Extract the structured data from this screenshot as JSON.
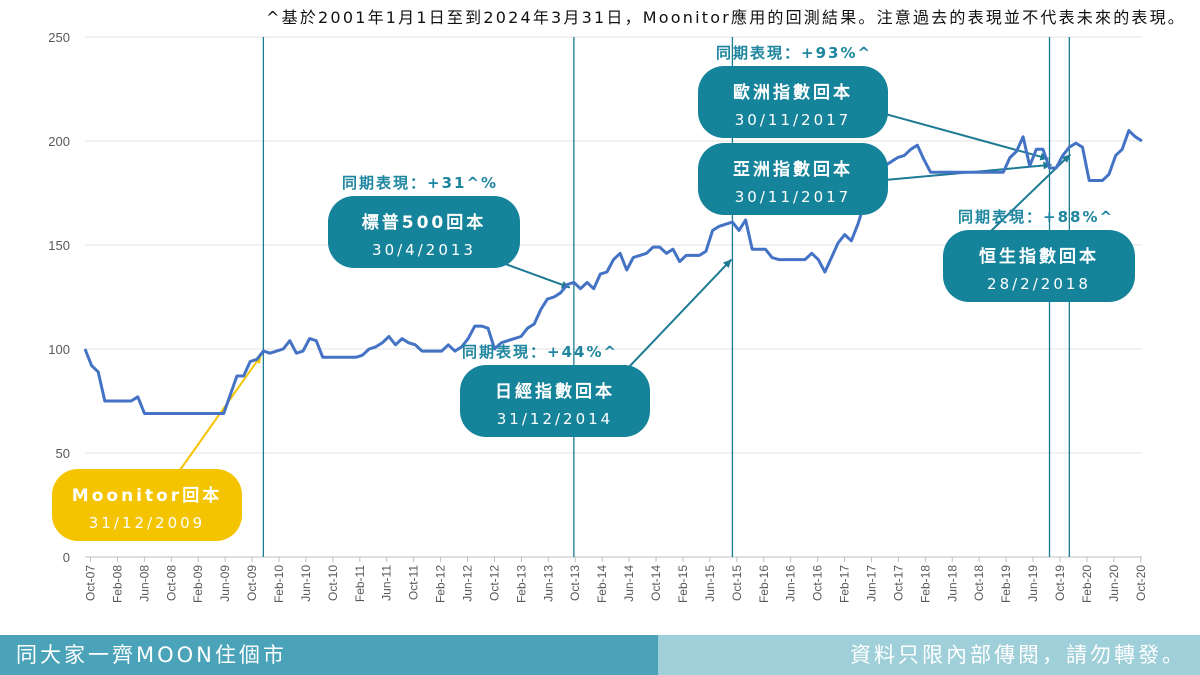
{
  "header": {
    "disclaimer": "^基於2001年1月1日至到2024年3月31日，Moonitor應用的回測結果。注意過去的表現並不代表未來的表現。"
  },
  "footer": {
    "left": "同大家一齊MOON住個市",
    "right": "資料只限內部傳閱，請勿轉發。"
  },
  "colors": {
    "line": "#4472c4",
    "event_line": "#1c7a92",
    "bubble_teal": "#15839a",
    "bubble_yellow": "#f5c400",
    "perf_text": "#1f86a0",
    "footer_left": "#4aa3b9",
    "footer_right": "#9fcfd9"
  },
  "chart_data": {
    "type": "line",
    "ylim": [
      0,
      250
    ],
    "yticks": [
      0,
      50,
      100,
      150,
      200,
      250
    ],
    "grid": true,
    "x_tick_labels": [
      "Oct-07",
      "Feb-08",
      "Jun-08",
      "Oct-08",
      "Feb-09",
      "Jun-09",
      "Oct-09",
      "Feb-10",
      "Jun-10",
      "Oct-10",
      "Feb-11",
      "Jun-11",
      "Oct-11",
      "Feb-12",
      "Jun-12",
      "Oct-12",
      "Feb-13",
      "Jun-13",
      "Oct-13",
      "Feb-14",
      "Jun-14",
      "Oct-14",
      "Feb-15",
      "Jun-15",
      "Oct-15",
      "Feb-16",
      "Jun-16",
      "Oct-16",
      "Feb-17",
      "Jun-17",
      "Oct-17",
      "Feb-18",
      "Jun-18",
      "Oct-18",
      "Feb-19",
      "Jun-19",
      "Oct-19",
      "Feb-20",
      "Jun-20",
      "Oct-20"
    ],
    "series": [
      {
        "values": [
          100,
          92,
          89,
          75,
          75,
          75,
          75,
          75,
          77,
          69,
          69,
          69,
          69,
          69,
          69,
          69,
          69,
          69,
          69,
          69,
          69,
          69,
          78,
          87,
          87,
          94,
          95,
          99,
          98,
          99,
          100,
          104,
          98,
          99,
          105,
          104,
          96,
          96,
          96,
          96,
          96,
          96,
          97,
          100,
          101,
          103,
          106,
          102,
          105,
          103,
          102,
          99,
          99,
          99,
          99,
          102,
          99,
          101,
          105,
          111,
          111,
          110,
          100,
          103,
          104,
          105,
          106,
          110,
          112,
          119,
          124,
          125,
          127,
          131,
          132,
          129,
          132,
          129,
          136,
          137,
          143,
          146,
          138,
          144,
          145,
          146,
          149,
          149,
          146,
          148,
          142,
          145,
          145,
          145,
          147,
          157,
          159,
          160,
          161,
          157,
          162,
          148,
          148,
          148,
          144,
          143,
          143,
          143,
          143,
          143,
          146,
          143,
          137,
          144,
          151,
          155,
          152,
          160,
          170,
          180,
          185,
          188,
          190,
          192,
          193,
          196,
          198,
          191,
          185,
          185,
          185,
          185,
          185,
          185,
          185,
          185,
          185,
          185,
          185,
          185,
          192,
          195,
          202,
          188,
          196,
          196,
          187,
          187,
          193,
          197,
          199,
          197,
          181,
          181,
          181,
          184,
          193,
          196,
          205,
          202,
          200
        ]
      }
    ],
    "events": [
      {
        "label": "Moonitor回本",
        "date": "31/12/2009"
      },
      {
        "label": "標普500回本",
        "date": "30/4/2013",
        "performance": "同期表現：+31^%"
      },
      {
        "label": "日經指數回本",
        "date": "31/12/2014",
        "performance": "同期表現：+44%^"
      },
      {
        "label": "歐洲指數回本",
        "date": "30/11/2017",
        "performance": "同期表現：+93%^"
      },
      {
        "label": "亞洲指數回本",
        "date": "30/11/2017"
      },
      {
        "label": "恒生指數回本",
        "date": "28/2/2018",
        "performance": "同期表現：+88%^"
      }
    ]
  }
}
